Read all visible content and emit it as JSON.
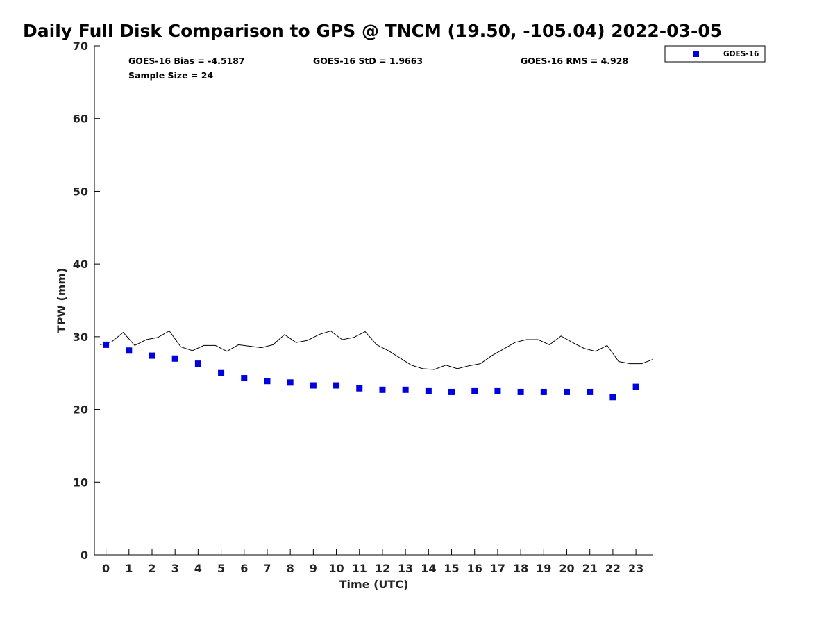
{
  "chart_data": {
    "type": "scatter",
    "title": "Daily Full Disk Comparison to GPS @ TNCM (19.50, -105.04) 2022-03-05",
    "xlabel": "Time (UTC)",
    "ylabel": "TPW (mm)",
    "xlim": [
      -0.5,
      23.75
    ],
    "ylim": [
      0,
      70
    ],
    "x_ticks": [
      0,
      1,
      2,
      3,
      4,
      5,
      6,
      7,
      8,
      9,
      10,
      11,
      12,
      13,
      14,
      15,
      16,
      17,
      18,
      19,
      20,
      21,
      22,
      23
    ],
    "y_ticks": [
      0,
      10,
      20,
      30,
      40,
      50,
      60,
      70
    ],
    "grid": false,
    "legend_position": "top-right, outside plot",
    "stats": {
      "bias": "GOES-16 Bias = -4.5187",
      "std": "GOES-16 StD = 1.9663",
      "rms": "GOES-16 RMS = 4.928",
      "sample": "Sample Size = 24"
    },
    "series": [
      {
        "name": "GOES-16",
        "kind": "markers",
        "marker": "square",
        "color": "#0000dd",
        "x": [
          0,
          1,
          2,
          3,
          4,
          5,
          6,
          7,
          8,
          9,
          10,
          11,
          12,
          13,
          14,
          15,
          16,
          17,
          18,
          19,
          20,
          21,
          22,
          23
        ],
        "y": [
          28.9,
          28.1,
          27.4,
          27.0,
          26.3,
          25.0,
          24.3,
          23.9,
          23.7,
          23.3,
          23.3,
          22.9,
          22.7,
          22.7,
          22.5,
          22.4,
          22.5,
          22.5,
          22.4,
          22.4,
          22.4,
          22.4,
          21.7,
          23.1
        ]
      },
      {
        "kind": "line",
        "color": "#000000",
        "x": [
          -0.25,
          0.25,
          0.75,
          1.25,
          1.75,
          2.25,
          2.75,
          3.25,
          3.75,
          4.25,
          4.75,
          5.25,
          5.75,
          6.25,
          6.75,
          7.25,
          7.75,
          8.25,
          8.75,
          9.25,
          9.75,
          10.25,
          10.75,
          11.25,
          11.75,
          12.25,
          12.75,
          13.25,
          13.75,
          14.25,
          14.75,
          15.25,
          15.75,
          16.25,
          16.75,
          17.25,
          17.75,
          18.25,
          18.75,
          19.25,
          19.75,
          20.25,
          20.75,
          21.25,
          21.75,
          22.25,
          22.75,
          23.25,
          23.75
        ],
        "y": [
          28.9,
          29.3,
          30.6,
          28.8,
          29.6,
          29.9,
          30.8,
          28.6,
          28.1,
          28.8,
          28.8,
          28.0,
          28.9,
          28.7,
          28.5,
          28.9,
          30.3,
          29.2,
          29.5,
          30.3,
          30.8,
          29.6,
          29.9,
          30.7,
          28.9,
          28.1,
          27.1,
          26.1,
          25.6,
          25.5,
          26.1,
          25.6,
          26.0,
          26.3,
          27.4,
          28.3,
          29.2,
          29.6,
          29.6,
          28.9,
          30.1,
          29.2,
          28.4,
          28.0,
          28.8,
          26.6,
          26.3,
          26.3,
          26.9
        ]
      }
    ]
  }
}
